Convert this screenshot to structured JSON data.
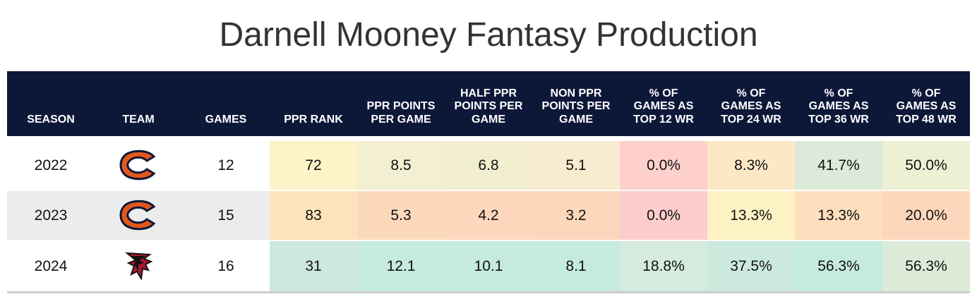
{
  "title": "Darnell Mooney Fantasy Production",
  "table": {
    "header": [
      "SEASON",
      "TEAM",
      "GAMES",
      "PPR RANK",
      "PPR POINTS PER GAME",
      "HALF PPR POINTS PER GAME",
      "NON PPR POINTS PER GAME",
      "% OF GAMES AS TOP 12 WR",
      "% OF GAMES AS TOP 24 WR",
      "% OF GAMES AS TOP 36 WR",
      "% OF GAMES AS TOP 48 WR"
    ],
    "rows": [
      [
        "2022",
        null,
        "12",
        "72",
        "8.5",
        "6.8",
        "5.1",
        "0.0%",
        "8.3%",
        "41.7%",
        "50.0%"
      ],
      [
        "2023",
        null,
        "15",
        "83",
        "5.3",
        "4.2",
        "3.2",
        "0.0%",
        "13.3%",
        "13.3%",
        "20.0%"
      ],
      [
        "2024",
        null,
        "16",
        "31",
        "12.1",
        "10.1",
        "8.1",
        "18.8%",
        "37.5%",
        "56.3%",
        "56.3%"
      ]
    ],
    "cell_colors": [
      [
        "#ffffff",
        "#ffffff",
        "#ffffff",
        "#fdf3c8",
        "#f3efd2",
        "#f2efd1",
        "#f7ecd0",
        "#fdd0cc",
        "#fde8c6",
        "#dcebd9",
        "#eef0d4"
      ],
      [
        "#ececec",
        "#ececec",
        "#ececec",
        "#fde2bc",
        "#fdd9bc",
        "#fdd8bc",
        "#fdd7bc",
        "#fdcccc",
        "#fdf2c4",
        "#fddfbd",
        "#fdd7bc"
      ],
      [
        "#ffffff",
        "#ffffff",
        "#ffffff",
        "#cce8e0",
        "#c5eadf",
        "#c5eadf",
        "#c5eadf",
        "#d4ebdd",
        "#cce9de",
        "#c5eadf",
        "#dcebd8"
      ]
    ]
  }
}
